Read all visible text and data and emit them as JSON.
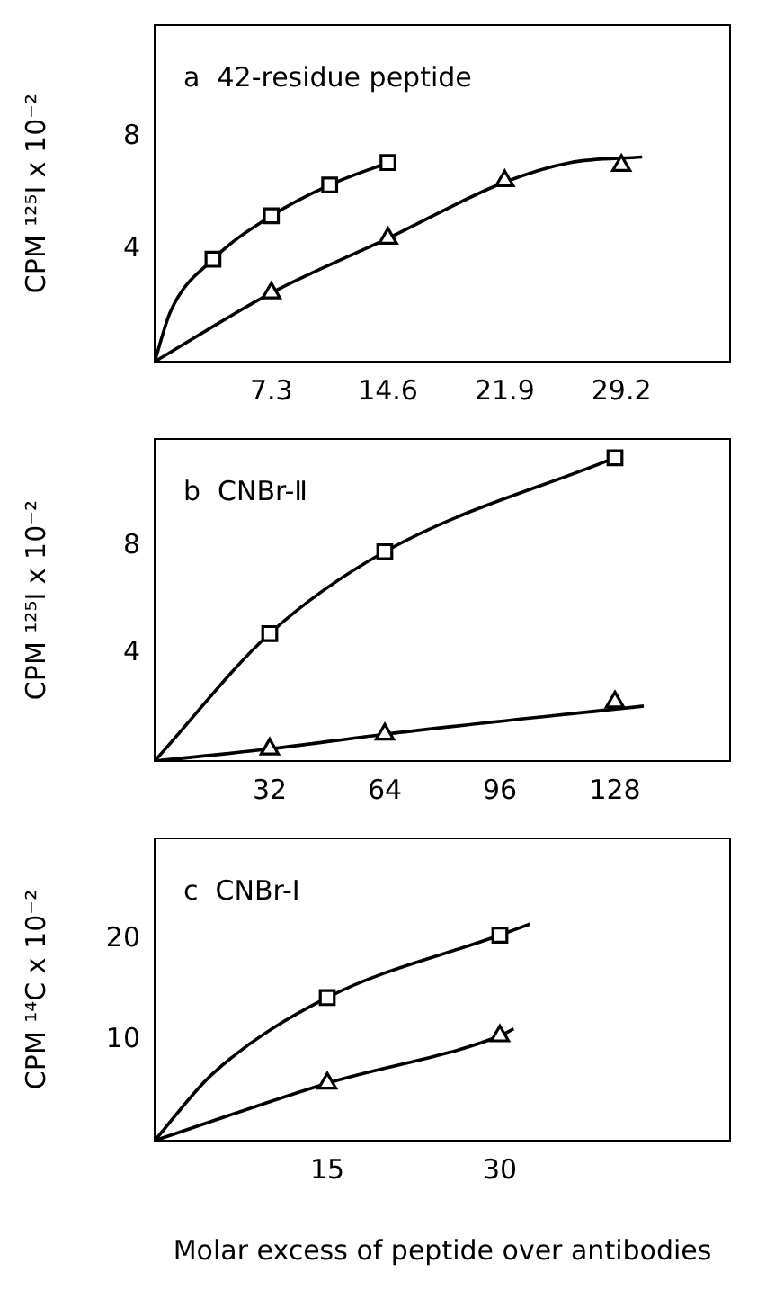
{
  "chart_data": [
    {
      "type": "scatter",
      "title": "a  42-residue peptide",
      "ylabel": "CPM ¹²⁵I x 10⁻²",
      "xlim": [
        0,
        36
      ],
      "xticks": [
        7.3,
        14.6,
        21.9,
        29.2
      ],
      "ylim": [
        0,
        12
      ],
      "yticks": [
        4,
        8
      ],
      "grid": false,
      "legend": false,
      "series": [
        {
          "type": "scatter",
          "marker": "square",
          "color": "#000000",
          "x": [
            3.65,
            7.3,
            10.95,
            14.6
          ],
          "values": [
            3.65,
            5.2,
            6.3,
            7.1
          ]
        },
        {
          "type": "scatter",
          "marker": "triangle",
          "color": "#000000",
          "x": [
            7.3,
            14.6,
            21.9,
            29.2
          ],
          "values": [
            2.45,
            4.4,
            6.45,
            7.0
          ]
        },
        {
          "type": "line",
          "marker": "none",
          "color": "#000000",
          "x": [
            0,
            1,
            3.65,
            7.3,
            10.95,
            14.6
          ],
          "values": [
            0,
            1.8,
            3.65,
            5.2,
            6.3,
            7.1
          ]
        },
        {
          "type": "line",
          "marker": "none",
          "color": "#000000",
          "x": [
            0,
            7.3,
            14.6,
            21.9,
            26,
            30.5
          ],
          "values": [
            0,
            2.45,
            4.4,
            6.4,
            7.1,
            7.3
          ]
        }
      ]
    },
    {
      "type": "scatter",
      "title": "b  CNBr-Ⅱ",
      "ylabel": "CPM ¹²⁵I x 10⁻²",
      "xlim": [
        0,
        160
      ],
      "xticks": [
        32,
        64,
        96,
        128
      ],
      "ylim": [
        0,
        12
      ],
      "yticks": [
        4,
        8
      ],
      "grid": false,
      "legend": false,
      "series": [
        {
          "type": "scatter",
          "marker": "square",
          "color": "#000000",
          "x": [
            32,
            64,
            128
          ],
          "values": [
            4.75,
            7.8,
            11.3
          ]
        },
        {
          "type": "scatter",
          "marker": "triangle",
          "color": "#000000",
          "x": [
            32,
            64,
            128
          ],
          "values": [
            0.45,
            1.0,
            2.2
          ]
        },
        {
          "type": "line",
          "marker": "none",
          "color": "#000000",
          "x": [
            0,
            32,
            64,
            128
          ],
          "values": [
            0,
            4.75,
            7.8,
            11.3
          ]
        },
        {
          "type": "line",
          "marker": "none",
          "color": "#000000",
          "x": [
            0,
            32,
            64,
            136
          ],
          "values": [
            0,
            0.45,
            1.0,
            2.05
          ]
        }
      ]
    },
    {
      "type": "scatter",
      "title": "c  CNBr-I",
      "ylabel": "CPM ¹⁴C x 10⁻²",
      "xlabel": "Molar excess of peptide over antibodies",
      "xlim": [
        0,
        50
      ],
      "xticks": [
        15,
        30
      ],
      "ylim": [
        0,
        30
      ],
      "yticks": [
        10,
        20
      ],
      "grid": false,
      "legend": false,
      "series": [
        {
          "type": "scatter",
          "marker": "square",
          "color": "#000000",
          "x": [
            15,
            30
          ],
          "values": [
            14.2,
            20.4
          ]
        },
        {
          "type": "scatter",
          "marker": "triangle",
          "color": "#000000",
          "x": [
            15,
            30
          ],
          "values": [
            5.7,
            10.4
          ]
        },
        {
          "type": "line",
          "marker": "none",
          "color": "#000000",
          "x": [
            0,
            5,
            15,
            30,
            32.6
          ],
          "values": [
            0,
            6.6,
            14.2,
            20.4,
            21.5
          ]
        },
        {
          "type": "line",
          "marker": "none",
          "color": "#000000",
          "x": [
            0,
            15,
            30,
            31.2
          ],
          "values": [
            0,
            5.7,
            10.4,
            11.1
          ]
        }
      ]
    }
  ]
}
